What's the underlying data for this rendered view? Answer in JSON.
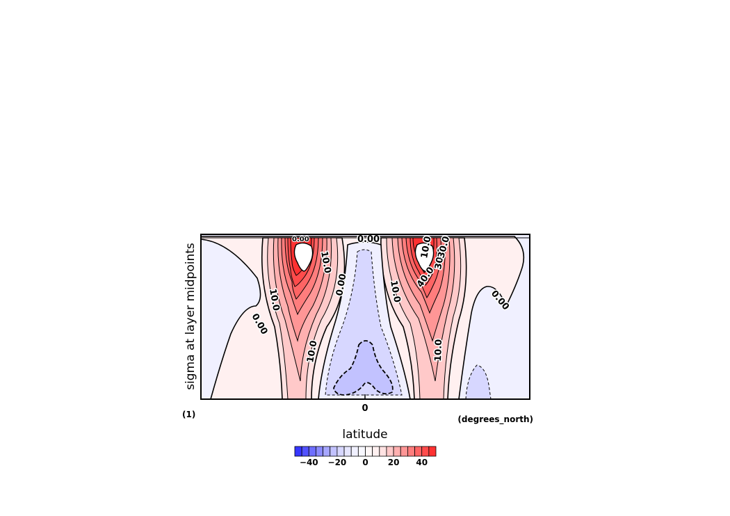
{
  "chart_data": {
    "type": "contour",
    "title": "",
    "xlabel": "latitude",
    "x_units": "(degrees_north)",
    "ylabel": "sigma at layer midpoints",
    "y_units": "(1)",
    "x_ticks": [
      {
        "value": 0,
        "label": "0"
      }
    ],
    "contour_labels": [
      "10.0",
      "0.00",
      "10.0",
      "10.0",
      "0.00",
      "10.0",
      "10.0",
      "0.00",
      "30.0",
      "10.0",
      "40.0",
      "30.0",
      "0.00",
      "0.00"
    ],
    "colorbar": {
      "range": [
        -50,
        50
      ],
      "step": 5,
      "ticks": [
        -40,
        -20,
        0,
        20,
        40
      ],
      "tick_labels": [
        "−40",
        "−20",
        "0",
        "20",
        "40"
      ],
      "colors": [
        "#3636ff",
        "#5252ff",
        "#6e6eff",
        "#8a8aff",
        "#a6a6ff",
        "#c2c2ff",
        "#d7d7ff",
        "#e6e6ff",
        "#f0f0ff",
        "#f8f8ff",
        "#fff8f8",
        "#fff0f0",
        "#ffe2e2",
        "#ffc9c9",
        "#ffb0b0",
        "#ff9696",
        "#ff7d7d",
        "#ff6464",
        "#ff4b4b",
        "#ff3232"
      ]
    }
  }
}
